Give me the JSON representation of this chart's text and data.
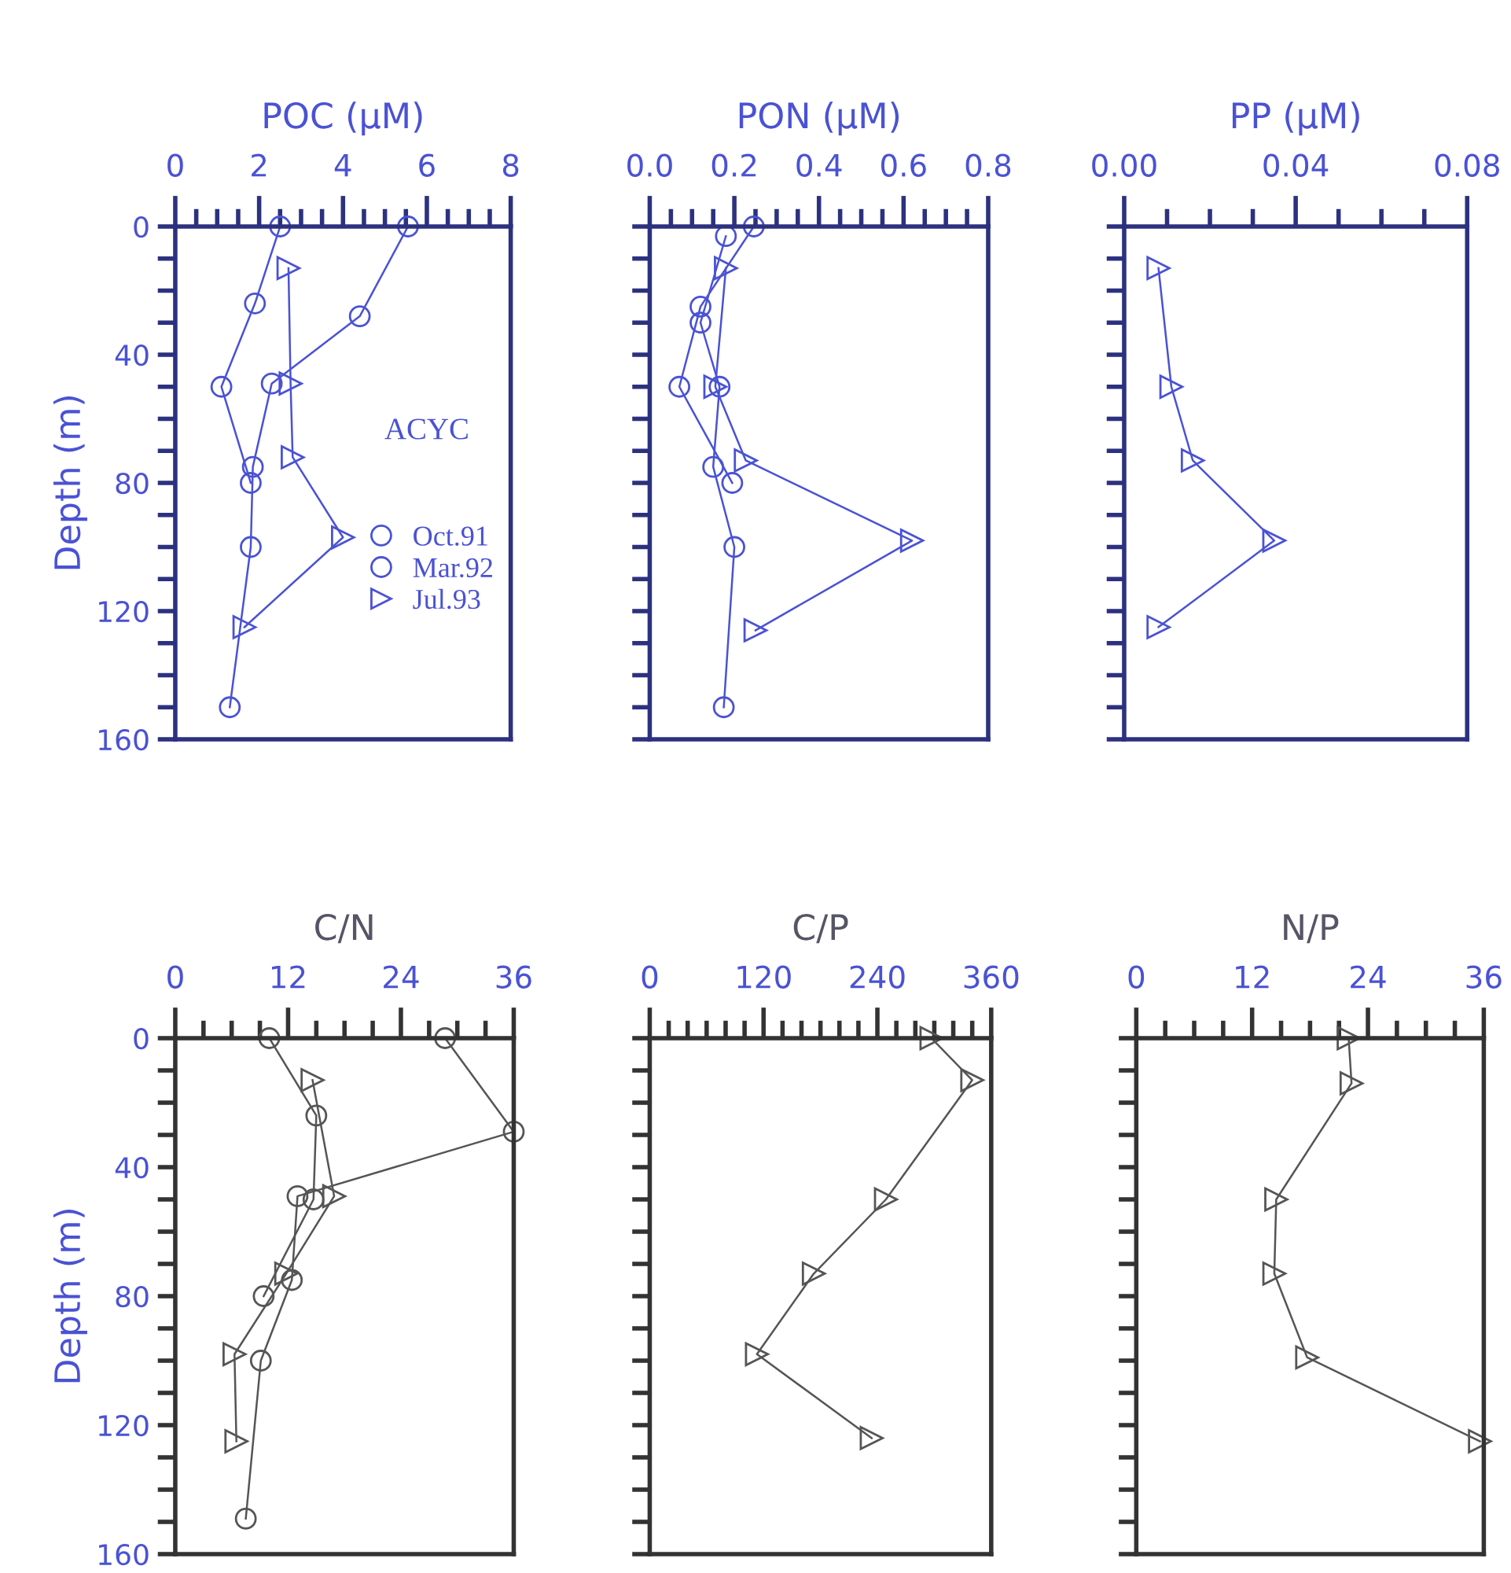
{
  "chart_data": [
    {
      "type": "line",
      "title": "POC (µM)",
      "ylabel": "Depth (m)",
      "xlim": [
        0,
        8
      ],
      "xticks": [
        0,
        {
          "value": 0.5,
          "label": null
        },
        {
          "value": 1,
          "label": null
        },
        {
          "value": 1.5,
          "label": null
        },
        2,
        {
          "value": 2.5,
          "label": null
        },
        {
          "value": 3,
          "label": null
        },
        {
          "value": 3.5,
          "label": null
        },
        4,
        {
          "value": 4.5,
          "label": null
        },
        {
          "value": 5,
          "label": null
        },
        {
          "value": 5.5,
          "label": null
        },
        6,
        {
          "value": 6.5,
          "label": null
        },
        {
          "value": 7,
          "label": null
        },
        {
          "value": 7.5,
          "label": null
        },
        8
      ],
      "ylim": [
        160,
        0
      ],
      "yticks": [
        0,
        {
          "value": 10,
          "label": null
        },
        {
          "value": 20,
          "label": null
        },
        {
          "value": 30,
          "label": null
        },
        40,
        {
          "value": 50,
          "label": null
        },
        {
          "value": 60,
          "label": null
        },
        {
          "value": 70,
          "label": null
        },
        80,
        {
          "value": 90,
          "label": null
        },
        {
          "value": 100,
          "label": null
        },
        {
          "value": 110,
          "label": null
        },
        120,
        {
          "value": 130,
          "label": null
        },
        {
          "value": 140,
          "label": null
        },
        {
          "value": 150,
          "label": null
        },
        160
      ],
      "legend": "right",
      "annotations": [
        "ACYC"
      ],
      "series": [
        {
          "name": "Oct.91",
          "color": "#4a52d4",
          "marker": "circle",
          "x": [
            5.55,
            4.4,
            2.3,
            1.85,
            1.8,
            1.3
          ],
          "values": [
            0,
            28,
            49,
            75,
            100,
            150
          ]
        },
        {
          "name": "Mar.92",
          "color": "#4a52d4",
          "marker": "circle",
          "x": [
            2.5,
            1.9,
            1.1,
            1.8
          ],
          "values": [
            0,
            24,
            50,
            80
          ]
        },
        {
          "name": "Jul.93",
          "color": "#4a52d4",
          "marker": "triangle",
          "x": [
            2.7,
            2.75,
            2.8,
            4.0,
            1.65
          ],
          "values": [
            13,
            49,
            72,
            97,
            125
          ]
        }
      ]
    },
    {
      "type": "line",
      "title": "PON (µM)",
      "tick_labels": "x",
      "xlim": [
        0,
        0.8
      ],
      "xticks": [
        {
          "value": 0,
          "label": "0.0"
        },
        {
          "value": 0.05,
          "label": null
        },
        {
          "value": 0.1,
          "label": null
        },
        {
          "value": 0.15,
          "label": null
        },
        {
          "value": 0.2,
          "label": "0.2"
        },
        {
          "value": 0.25,
          "label": null
        },
        {
          "value": 0.3,
          "label": null
        },
        {
          "value": 0.35,
          "label": null
        },
        {
          "value": 0.4,
          "label": "0.4"
        },
        {
          "value": 0.45,
          "label": null
        },
        {
          "value": 0.5,
          "label": null
        },
        {
          "value": 0.55,
          "label": null
        },
        {
          "value": 0.6,
          "label": "0.6"
        },
        {
          "value": 0.65,
          "label": null
        },
        {
          "value": 0.7,
          "label": null
        },
        {
          "value": 0.75,
          "label": null
        },
        {
          "value": 0.8,
          "label": "0.8"
        }
      ],
      "ylim": [
        160,
        0
      ],
      "yticks": [
        0,
        10,
        20,
        30,
        40,
        50,
        60,
        70,
        80,
        90,
        100,
        110,
        120,
        130,
        140,
        150,
        160
      ],
      "series": [
        {
          "color": "#4a52d4",
          "marker": "circle",
          "x": [
            0.18,
            0.12,
            0.165,
            0.15,
            0.2,
            0.175
          ],
          "values": [
            3,
            30,
            50,
            75,
            100,
            150
          ]
        },
        {
          "color": "#4a52d4",
          "marker": "circle",
          "x": [
            0.246,
            0.12,
            0.07,
            0.195
          ],
          "values": [
            0,
            25,
            50,
            80
          ]
        },
        {
          "color": "#4a52d4",
          "marker": "triangle",
          "x": [
            0.18,
            0.155,
            0.227,
            0.62,
            0.25
          ],
          "values": [
            13,
            50,
            73,
            98,
            126
          ]
        }
      ]
    },
    {
      "type": "line",
      "title": "PP (µM)",
      "tick_labels": "x",
      "xlim": [
        0,
        0.08
      ],
      "xticks": [
        {
          "value": 0,
          "label": "0.00"
        },
        {
          "value": 0.01,
          "label": null
        },
        {
          "value": 0.02,
          "label": null
        },
        {
          "value": 0.03,
          "label": null
        },
        {
          "value": 0.04,
          "label": "0.04"
        },
        {
          "value": 0.05,
          "label": null
        },
        {
          "value": 0.06,
          "label": null
        },
        {
          "value": 0.07,
          "label": null
        },
        {
          "value": 0.08,
          "label": "0.08"
        }
      ],
      "ylim": [
        160,
        0
      ],
      "yticks": [
        0,
        10,
        20,
        30,
        40,
        50,
        60,
        70,
        80,
        90,
        100,
        110,
        120,
        130,
        140,
        150,
        160
      ],
      "series": [
        {
          "color": "#4a52d4",
          "marker": "triangle",
          "x": [
            0.008,
            0.011,
            0.016,
            0.035,
            0.008
          ],
          "values": [
            13,
            50,
            73,
            98,
            125
          ]
        }
      ]
    },
    {
      "type": "line",
      "title": "C/N",
      "ylabel": "Depth (m)",
      "xlim": [
        0,
        36
      ],
      "xticks": [
        0,
        {
          "value": 3,
          "label": null
        },
        {
          "value": 6,
          "label": null
        },
        {
          "value": 9,
          "label": null
        },
        12,
        {
          "value": 15,
          "label": null
        },
        {
          "value": 18,
          "label": null
        },
        {
          "value": 21,
          "label": null
        },
        24,
        {
          "value": 27,
          "label": null
        },
        {
          "value": 30,
          "label": null
        },
        {
          "value": 33,
          "label": null
        },
        36
      ],
      "ylim": [
        160,
        0
      ],
      "yticks": [
        0,
        {
          "value": 10,
          "label": null
        },
        {
          "value": 20,
          "label": null
        },
        {
          "value": 30,
          "label": null
        },
        40,
        {
          "value": 50,
          "label": null
        },
        {
          "value": 60,
          "label": null
        },
        {
          "value": 70,
          "label": null
        },
        80,
        {
          "value": 90,
          "label": null
        },
        {
          "value": 100,
          "label": null
        },
        {
          "value": 110,
          "label": null
        },
        120,
        {
          "value": 130,
          "label": null
        },
        {
          "value": 140,
          "label": null
        },
        {
          "value": 150,
          "label": null
        },
        160
      ],
      "series": [
        {
          "color": "#555555",
          "marker": "circle",
          "x": [
            28.7,
            36,
            13.0,
            12.4,
            9.1,
            7.5
          ],
          "values": [
            0,
            29,
            49,
            75,
            100,
            149
          ]
        },
        {
          "color": "#555555",
          "marker": "circle",
          "x": [
            10.0,
            15.0,
            14.7,
            9.4
          ],
          "values": [
            0,
            24,
            50,
            80
          ]
        },
        {
          "color": "#555555",
          "marker": "triangle",
          "x": [
            14.6,
            16.9,
            11.8,
            6.3,
            6.5
          ],
          "values": [
            13,
            49,
            73,
            98,
            125
          ]
        }
      ]
    },
    {
      "type": "line",
      "title": "C/P",
      "tick_labels": "x",
      "xlim": [
        0,
        360
      ],
      "xticks": [
        0,
        {
          "value": 20,
          "label": null
        },
        {
          "value": 40,
          "label": null
        },
        {
          "value": 60,
          "label": null
        },
        {
          "value": 80,
          "label": null
        },
        {
          "value": 100,
          "label": null
        },
        120,
        {
          "value": 140,
          "label": null
        },
        {
          "value": 160,
          "label": null
        },
        {
          "value": 180,
          "label": null
        },
        {
          "value": 200,
          "label": null
        },
        {
          "value": 220,
          "label": null
        },
        240,
        {
          "value": 260,
          "label": null
        },
        {
          "value": 280,
          "label": null
        },
        {
          "value": 300,
          "label": null
        },
        {
          "value": 320,
          "label": null
        },
        {
          "value": 340,
          "label": null
        },
        360
      ],
      "ylim": [
        160,
        0
      ],
      "yticks": [
        0,
        10,
        20,
        30,
        40,
        50,
        60,
        70,
        80,
        90,
        100,
        110,
        120,
        130,
        140,
        150,
        160
      ],
      "series": [
        {
          "color": "#555555",
          "marker": "triangle",
          "x": [
            297,
            340,
            249,
            173,
            113,
            234
          ],
          "values": [
            0,
            13,
            50,
            73,
            98,
            124
          ]
        }
      ]
    },
    {
      "type": "line",
      "title": "N/P",
      "tick_labels": "x",
      "xlim": [
        0,
        36
      ],
      "xticks": [
        0,
        {
          "value": 3,
          "label": null
        },
        {
          "value": 6,
          "label": null
        },
        {
          "value": 9,
          "label": null
        },
        12,
        {
          "value": 15,
          "label": null
        },
        {
          "value": 18,
          "label": null
        },
        {
          "value": 21,
          "label": null
        },
        24,
        {
          "value": 27,
          "label": null
        },
        {
          "value": 30,
          "label": null
        },
        {
          "value": 33,
          "label": null
        },
        36
      ],
      "ylim": [
        160,
        0
      ],
      "yticks": [
        0,
        10,
        20,
        30,
        40,
        50,
        60,
        70,
        80,
        90,
        100,
        110,
        120,
        130,
        140,
        150,
        160
      ],
      "series": [
        {
          "color": "#555555",
          "marker": "triangle",
          "x": [
            22.0,
            22.3,
            14.5,
            14.3,
            17.7,
            35.6
          ],
          "values": [
            0,
            14,
            50,
            73,
            99,
            125
          ]
        }
      ]
    }
  ]
}
